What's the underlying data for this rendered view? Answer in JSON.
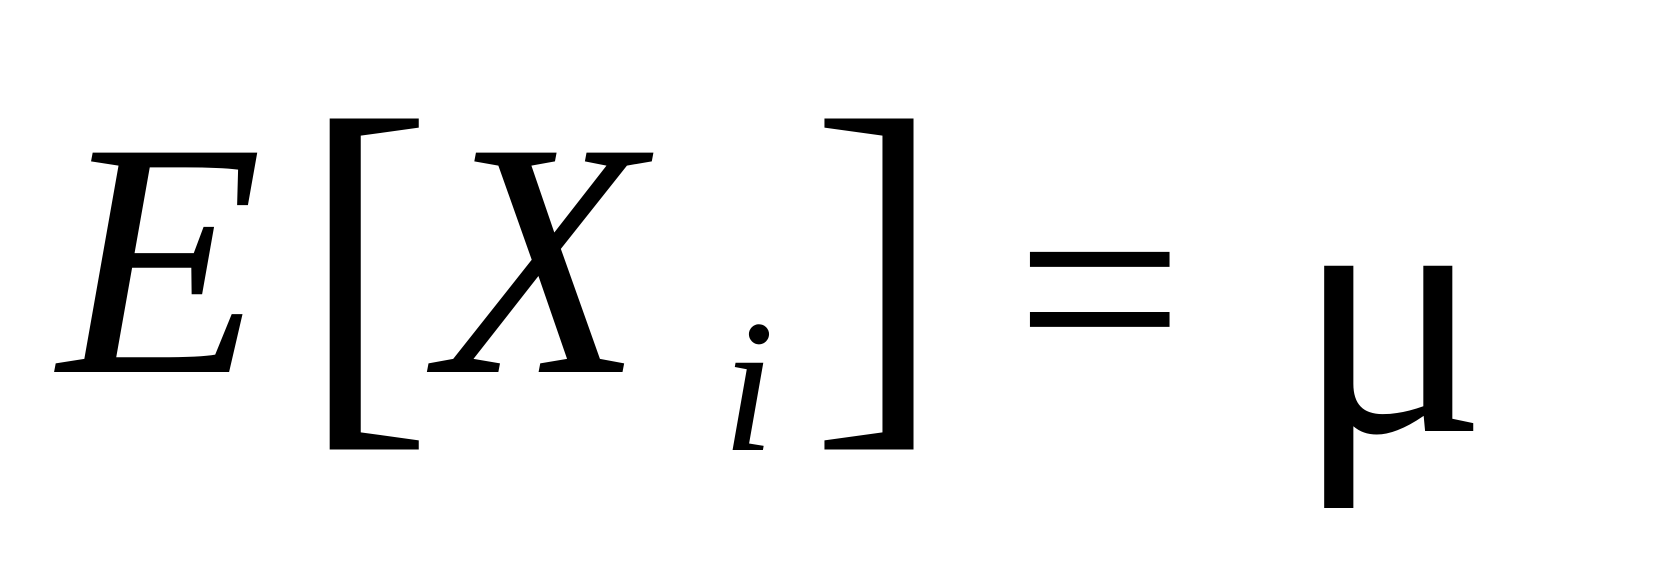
{
  "formula": {
    "expectation_symbol": "E",
    "left_bracket": "[",
    "variable": "X",
    "subscript": "i",
    "right_bracket": "]",
    "equals": "=",
    "mean_symbol": "μ"
  },
  "colors": {
    "background": "#ffffff",
    "text": "#000000"
  }
}
